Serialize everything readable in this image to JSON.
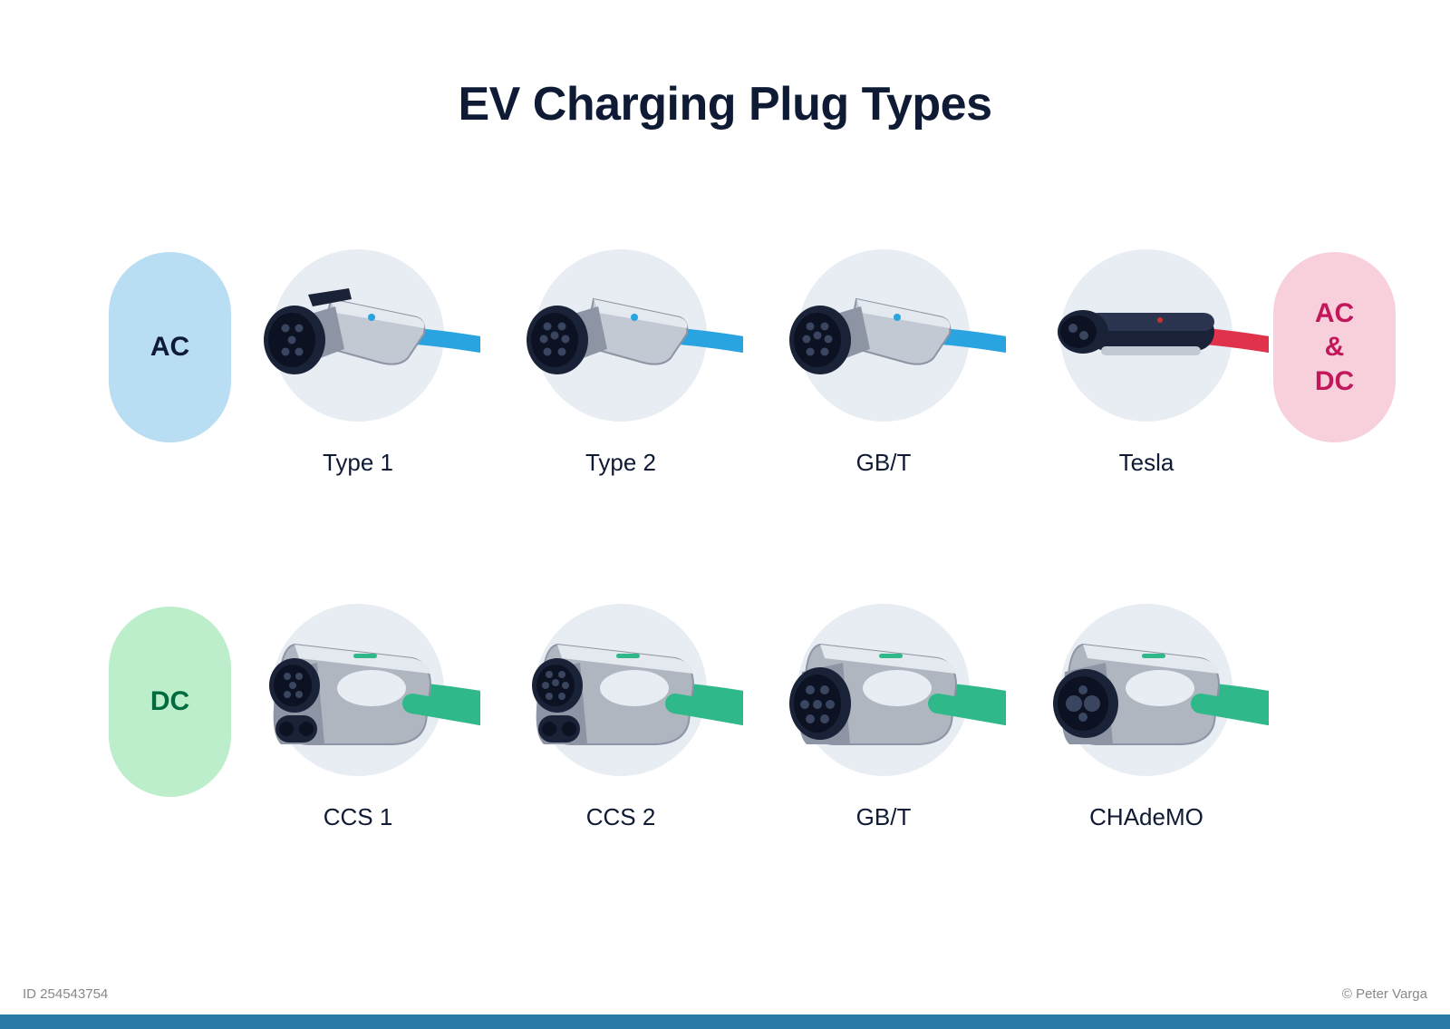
{
  "title": "EV Charging Plug Types",
  "title_color": "#0f1a34",
  "title_fontsize": 52,
  "background_color": "#ffffff",
  "circle_bg": "#e8edf3",
  "bottom_bar_color": "#2a7aa8",
  "watermark_left": "ID 254543754",
  "watermark_right": "© Peter Varga",
  "categories": {
    "ac": {
      "label": "AC",
      "bg": "#b9ddf2",
      "fg": "#0f1a34"
    },
    "dc": {
      "label": "DC",
      "bg": "#bdeecb",
      "fg": "#006b3f"
    },
    "acdc": {
      "label": "AC\n&\nDC",
      "bg": "#f7d0db",
      "fg": "#c2185b"
    }
  },
  "rows": [
    {
      "left_category": "ac",
      "right_category": "acdc",
      "plugs": [
        {
          "label": "Type 1",
          "shape": "type1",
          "cable_color": "#2aa4e0",
          "body_light": "#c3c9d3",
          "body_dark": "#1a2238"
        },
        {
          "label": "Type 2",
          "shape": "type2",
          "cable_color": "#2aa4e0",
          "body_light": "#c3c9d3",
          "body_dark": "#1a2238"
        },
        {
          "label": "GB/T",
          "shape": "gbt_ac",
          "cable_color": "#2aa4e0",
          "body_light": "#c3c9d3",
          "body_dark": "#1a2238"
        },
        {
          "label": "Tesla",
          "shape": "tesla",
          "cable_color": "#e0324a",
          "body_light": "#c3c9d3",
          "body_dark": "#1a2238"
        }
      ]
    },
    {
      "left_category": "dc",
      "right_category": null,
      "plugs": [
        {
          "label": "CCS 1",
          "shape": "ccs1",
          "cable_color": "#2fb98a",
          "body_light": "#b0b6c0",
          "body_dark": "#1a2238"
        },
        {
          "label": "CCS 2",
          "shape": "ccs2",
          "cable_color": "#2fb98a",
          "body_light": "#b0b6c0",
          "body_dark": "#1a2238"
        },
        {
          "label": "GB/T",
          "shape": "gbt_dc",
          "cable_color": "#2fb98a",
          "body_light": "#b0b6c0",
          "body_dark": "#1a2238"
        },
        {
          "label": "CHAdeMO",
          "shape": "chademo",
          "cable_color": "#2fb98a",
          "body_light": "#b0b6c0",
          "body_dark": "#1a2238"
        }
      ]
    }
  ],
  "label_color": "#0f1a34",
  "label_fontsize": 26
}
